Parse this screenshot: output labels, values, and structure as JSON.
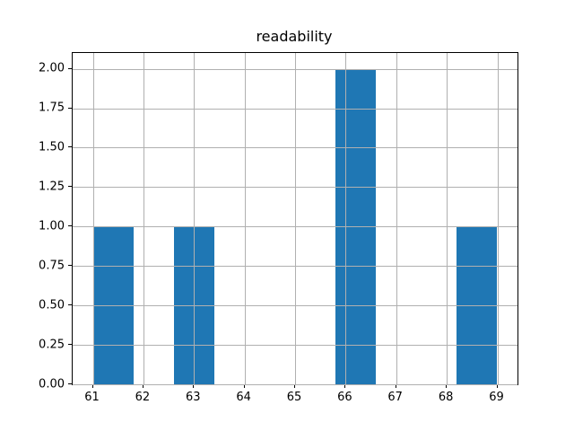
{
  "colors": {
    "bar": "#1f77b4",
    "grid": "#b0b0b0",
    "spine": "#000000",
    "background": "#ffffff"
  },
  "chart_data": {
    "type": "bar",
    "title": "readability",
    "xlabel": "",
    "ylabel": "",
    "xlim": [
      60.6,
      69.4
    ],
    "ylim": [
      0,
      2.1
    ],
    "grid": true,
    "grid_above_bars": true,
    "x_ticks": [
      {
        "value": 61,
        "label": "61"
      },
      {
        "value": 62,
        "label": "62"
      },
      {
        "value": 63,
        "label": "63"
      },
      {
        "value": 64,
        "label": "64"
      },
      {
        "value": 65,
        "label": "65"
      },
      {
        "value": 66,
        "label": "66"
      },
      {
        "value": 67,
        "label": "67"
      },
      {
        "value": 68,
        "label": "68"
      },
      {
        "value": 69,
        "label": "69"
      }
    ],
    "y_ticks": [
      {
        "value": 0.0,
        "label": "0.00"
      },
      {
        "value": 0.25,
        "label": "0.25"
      },
      {
        "value": 0.5,
        "label": "0.50"
      },
      {
        "value": 0.75,
        "label": "0.75"
      },
      {
        "value": 1.0,
        "label": "1.00"
      },
      {
        "value": 1.25,
        "label": "1.25"
      },
      {
        "value": 1.5,
        "label": "1.50"
      },
      {
        "value": 1.75,
        "label": "1.75"
      },
      {
        "value": 2.0,
        "label": "2.00"
      }
    ],
    "bars": [
      {
        "x_start": 61.0,
        "x_end": 61.8,
        "height": 1
      },
      {
        "x_start": 62.6,
        "x_end": 63.4,
        "height": 1
      },
      {
        "x_start": 65.8,
        "x_end": 66.6,
        "height": 2
      },
      {
        "x_start": 68.2,
        "x_end": 69.0,
        "height": 1
      }
    ]
  }
}
